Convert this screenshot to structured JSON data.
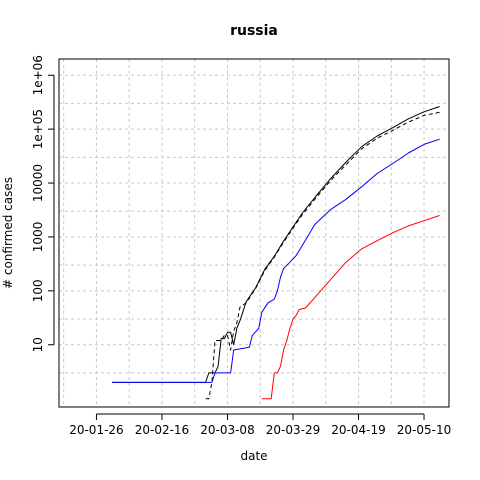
{
  "chart_data": {
    "type": "line",
    "title": "russia",
    "xlabel": "date",
    "ylabel": "# confirmed cases",
    "x_scale": "date",
    "y_scale": "log",
    "xlim": [
      "2020-01-14",
      "2020-05-18"
    ],
    "ylim": [
      0.7,
      2000000
    ],
    "x_ticks": [
      "2020-01-26",
      "2020-02-16",
      "2020-03-08",
      "2020-03-29",
      "2020-04-19",
      "2020-05-10"
    ],
    "x_tick_labels": [
      "20-01-26",
      "20-02-16",
      "20-03-08",
      "20-03-29",
      "20-04-19",
      "20-05-10"
    ],
    "y_ticks": [
      10,
      100,
      1000,
      10000,
      100000,
      1000000
    ],
    "y_tick_labels": [
      "10",
      "100",
      "1000",
      "10000",
      "1e+05",
      "1e+06"
    ],
    "grid": true,
    "series": [
      {
        "color": "#000000",
        "dash": "solid",
        "x": [
          "2020-01-31",
          "2020-03-01",
          "2020-03-02",
          "2020-03-04",
          "2020-03-05",
          "2020-03-06",
          "2020-03-07",
          "2020-03-08",
          "2020-03-09",
          "2020-03-10",
          "2020-03-11",
          "2020-03-12",
          "2020-03-14",
          "2020-03-17",
          "2020-03-20",
          "2020-03-23",
          "2020-03-26",
          "2020-03-29",
          "2020-04-01",
          "2020-04-05",
          "2020-04-10",
          "2020-04-15",
          "2020-04-20",
          "2020-04-25",
          "2020-04-30",
          "2020-05-05",
          "2020-05-10",
          "2020-05-15"
        ],
        "y": [
          2,
          2,
          3,
          3,
          4,
          13,
          13,
          17,
          17,
          10,
          20,
          28,
          63,
          114,
          253,
          438,
          840,
          1534,
          2777,
          5389,
          11917,
          24490,
          47121,
          74588,
          106498,
          155370,
          209688,
          262843
        ]
      },
      {
        "color": "#000000",
        "dash": "dashed",
        "x": [
          "2020-03-01",
          "2020-03-02",
          "2020-03-03",
          "2020-03-04",
          "2020-03-06",
          "2020-03-07",
          "2020-03-08",
          "2020-03-09",
          "2020-03-10",
          "2020-03-11",
          "2020-03-12",
          "2020-03-14",
          "2020-03-17",
          "2020-03-20",
          "2020-03-23",
          "2020-03-26",
          "2020-03-29",
          "2020-04-01",
          "2020-04-05",
          "2020-04-10",
          "2020-04-15",
          "2020-04-20",
          "2020-04-25",
          "2020-04-30",
          "2020-05-05",
          "2020-05-10",
          "2020-05-15"
        ],
        "y": [
          1,
          1,
          2,
          12,
          12,
          15,
          15,
          8,
          18,
          25,
          50,
          60,
          110,
          240,
          420,
          800,
          1450,
          2600,
          5000,
          11000,
          22000,
          43000,
          68000,
          95000,
          135000,
          180000,
          205000
        ]
      },
      {
        "color": "#0000ff",
        "dash": "solid",
        "x": [
          "2020-01-31",
          "2020-03-03",
          "2020-03-04",
          "2020-03-09",
          "2020-03-10",
          "2020-03-15",
          "2020-03-16",
          "2020-03-18",
          "2020-03-19",
          "2020-03-21",
          "2020-03-23",
          "2020-03-24",
          "2020-03-25",
          "2020-03-26",
          "2020-03-28",
          "2020-03-30",
          "2020-04-01",
          "2020-04-05",
          "2020-04-10",
          "2020-04-15",
          "2020-04-20",
          "2020-04-25",
          "2020-04-30",
          "2020-05-05",
          "2020-05-10",
          "2020-05-15"
        ],
        "y": [
          2,
          2,
          3,
          3,
          8,
          9,
          15,
          20,
          40,
          60,
          70,
          100,
          180,
          260,
          340,
          450,
          700,
          1700,
          3200,
          5000,
          8500,
          15000,
          23000,
          36000,
          52000,
          65000
        ]
      },
      {
        "color": "#ff0000",
        "dash": "solid",
        "x": [
          "2020-03-19",
          "2020-03-22",
          "2020-03-23",
          "2020-03-24",
          "2020-03-25",
          "2020-03-26",
          "2020-03-27",
          "2020-03-28",
          "2020-03-29",
          "2020-03-30",
          "2020-03-31",
          "2020-04-02",
          "2020-04-05",
          "2020-04-10",
          "2020-04-15",
          "2020-04-20",
          "2020-04-25",
          "2020-04-30",
          "2020-05-05",
          "2020-05-10",
          "2020-05-15"
        ],
        "y": [
          1,
          1,
          3,
          3,
          4,
          8,
          12,
          20,
          30,
          35,
          45,
          48,
          75,
          160,
          340,
          600,
          850,
          1200,
          1600,
          2000,
          2500
        ]
      }
    ]
  }
}
